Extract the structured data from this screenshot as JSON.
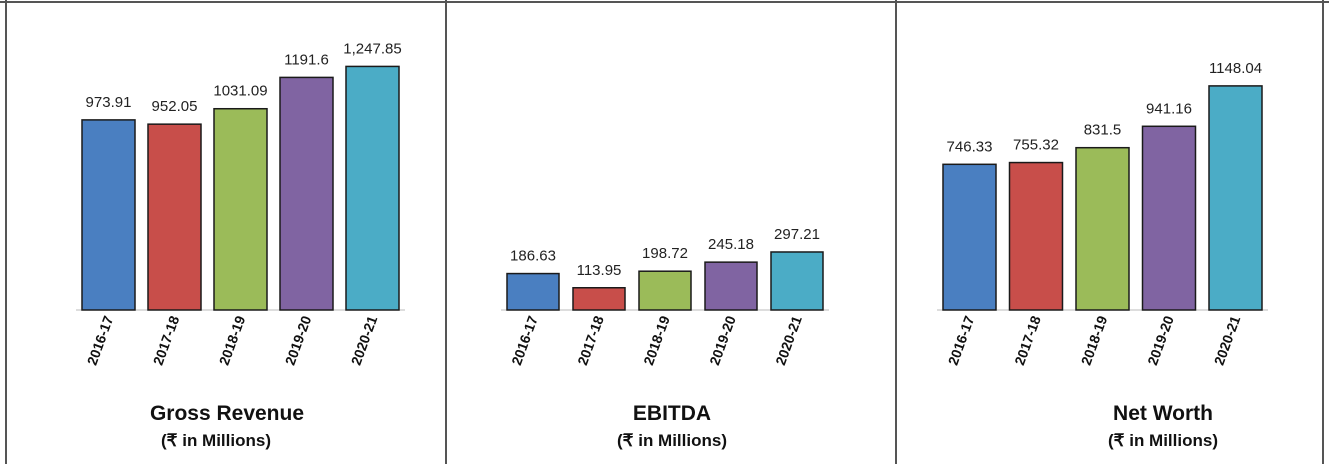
{
  "colors": [
    "#4a7fc1",
    "#c84e4a",
    "#9bbb59",
    "#8064a2",
    "#4bacc6"
  ],
  "chart_data": [
    {
      "type": "bar",
      "title": "Gross Revenue",
      "subtitle": "(₹ in Millions)",
      "categories": [
        "2016-17",
        "2017-18",
        "2018-19",
        "2019-20",
        "2020-21"
      ],
      "values": [
        973.91,
        952.05,
        1031.09,
        1191.6,
        1247.85
      ],
      "value_labels": [
        "973.91",
        "952.05",
        "1031.09",
        "1191.6",
        "1,247.85"
      ],
      "ylim": [
        0,
        1300
      ],
      "grid": false,
      "legend": "none"
    },
    {
      "type": "bar",
      "title": "EBITDA",
      "subtitle": "(₹ in Millions)",
      "categories": [
        "2016-17",
        "2017-18",
        "2018-19",
        "2019-20",
        "2020-21"
      ],
      "values": [
        186.63,
        113.95,
        198.72,
        245.18,
        297.21
      ],
      "value_labels": [
        "186.63",
        "113.95",
        "198.72",
        "245.18",
        "297.21"
      ],
      "ylim": [
        0,
        1300
      ],
      "grid": false,
      "legend": "none"
    },
    {
      "type": "bar",
      "title": "Net Worth",
      "subtitle": "(₹ in Millions)",
      "categories": [
        "2016-17",
        "2017-18",
        "2018-19",
        "2019-20",
        "2020-21"
      ],
      "values": [
        746.33,
        755.32,
        831.5,
        941.16,
        1148.04
      ],
      "value_labels": [
        "746.33",
        "755.32",
        "831.5",
        "941.16",
        "1148.04"
      ],
      "ylim": [
        0,
        1300
      ],
      "grid": false,
      "legend": "none"
    }
  ]
}
